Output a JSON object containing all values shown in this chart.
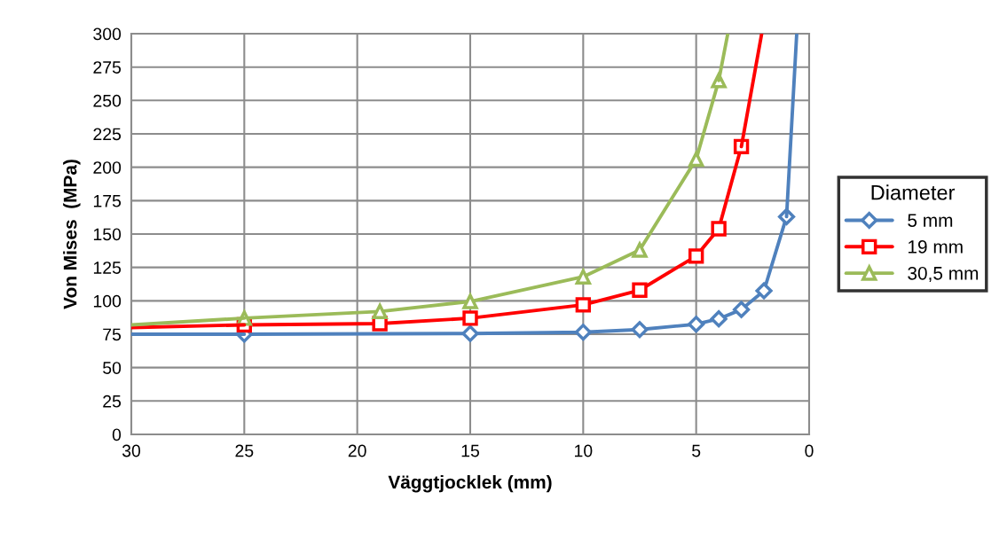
{
  "chart_data": {
    "type": "line",
    "xlabel": "Väggtjocklek (mm)",
    "ylabel": "Von Mises  (MPa)",
    "legend_title": "Diameter",
    "xlim": [
      30,
      0
    ],
    "xticks": [
      30,
      25,
      20,
      15,
      10,
      5,
      0
    ],
    "ylim": [
      0,
      300
    ],
    "yticks": [
      0,
      25,
      50,
      75,
      100,
      125,
      150,
      175,
      200,
      225,
      250,
      275,
      300
    ],
    "grid": true,
    "legend": "right",
    "line_style": "solid",
    "series": [
      {
        "name": "5 mm",
        "color": "#4f81bd",
        "marker": "diamond",
        "x": [
          25,
          15,
          10,
          7.5,
          5,
          4,
          3,
          2,
          1
        ],
        "values": [
          75,
          75.5,
          76.5,
          78.5,
          82.5,
          86.5,
          93.5,
          107.5,
          163
        ]
      },
      {
        "name": "19 mm",
        "color": "#ff0000",
        "marker": "square",
        "x": [
          25,
          19,
          15,
          10,
          7.5,
          5,
          4,
          3
        ],
        "values": [
          82,
          83,
          87,
          97,
          108,
          133.5,
          154,
          215.5
        ]
      },
      {
        "name": "30,5 mm",
        "color": "#9bbb59",
        "marker": "triangle",
        "x": [
          25,
          19,
          15,
          10,
          7.5,
          5,
          4
        ],
        "values": [
          87,
          92,
          99.5,
          118,
          138,
          206,
          265
        ]
      },
      {
        "color": "#4f81bd",
        "marker": "none",
        "x": [
          30,
          25
        ],
        "values": [
          75,
          75
        ]
      },
      {
        "color": "#4f81bd",
        "marker": "none",
        "x": [
          1,
          0.55
        ],
        "values": [
          163,
          300
        ]
      },
      {
        "color": "#ff0000",
        "marker": "none",
        "x": [
          30,
          25
        ],
        "values": [
          80,
          82
        ]
      },
      {
        "color": "#ff0000",
        "marker": "none",
        "x": [
          3,
          2.1
        ],
        "values": [
          215.5,
          300
        ]
      },
      {
        "color": "#9bbb59",
        "marker": "none",
        "x": [
          30,
          25
        ],
        "values": [
          82,
          87
        ]
      },
      {
        "color": "#9bbb59",
        "marker": "none",
        "x": [
          4,
          3.6
        ],
        "values": [
          265,
          300
        ]
      }
    ]
  }
}
